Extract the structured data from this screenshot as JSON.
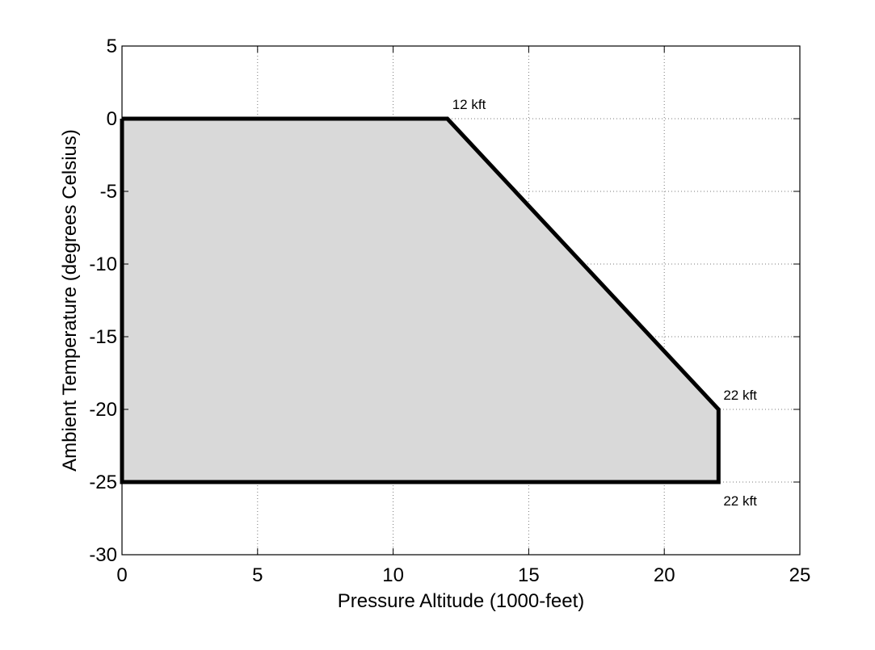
{
  "chart_data": {
    "type": "area",
    "title": "",
    "xlabel": "Pressure Altitude (1000-feet)",
    "ylabel": "Ambient Temperature (degrees Celsius)",
    "xlim": [
      0,
      25
    ],
    "ylim": [
      -30,
      5
    ],
    "xticks": [
      0,
      5,
      10,
      15,
      20,
      25
    ],
    "yticks": [
      5,
      0,
      -5,
      -10,
      -15,
      -20,
      -25,
      -30
    ],
    "xtick_labels": [
      "0",
      "5",
      "10",
      "15",
      "20",
      "25"
    ],
    "ytick_labels": [
      "5",
      "0",
      "-5",
      "-10",
      "-15",
      "-20",
      "-25",
      "-30"
    ],
    "grid": true,
    "colors": {
      "fill": "#d9d9d9",
      "line": "#000000"
    },
    "series": [
      {
        "x": [
          0,
          12,
          22,
          22,
          0,
          0
        ],
        "y": [
          0,
          0,
          -20,
          -25,
          -25,
          0
        ]
      }
    ],
    "annotations": [
      {
        "text": "12 kft",
        "x": 12,
        "y": 0
      },
      {
        "text": "22 kft",
        "x": 22,
        "y": -20
      },
      {
        "text": "22 kft",
        "x": 22,
        "y": -25
      }
    ]
  }
}
